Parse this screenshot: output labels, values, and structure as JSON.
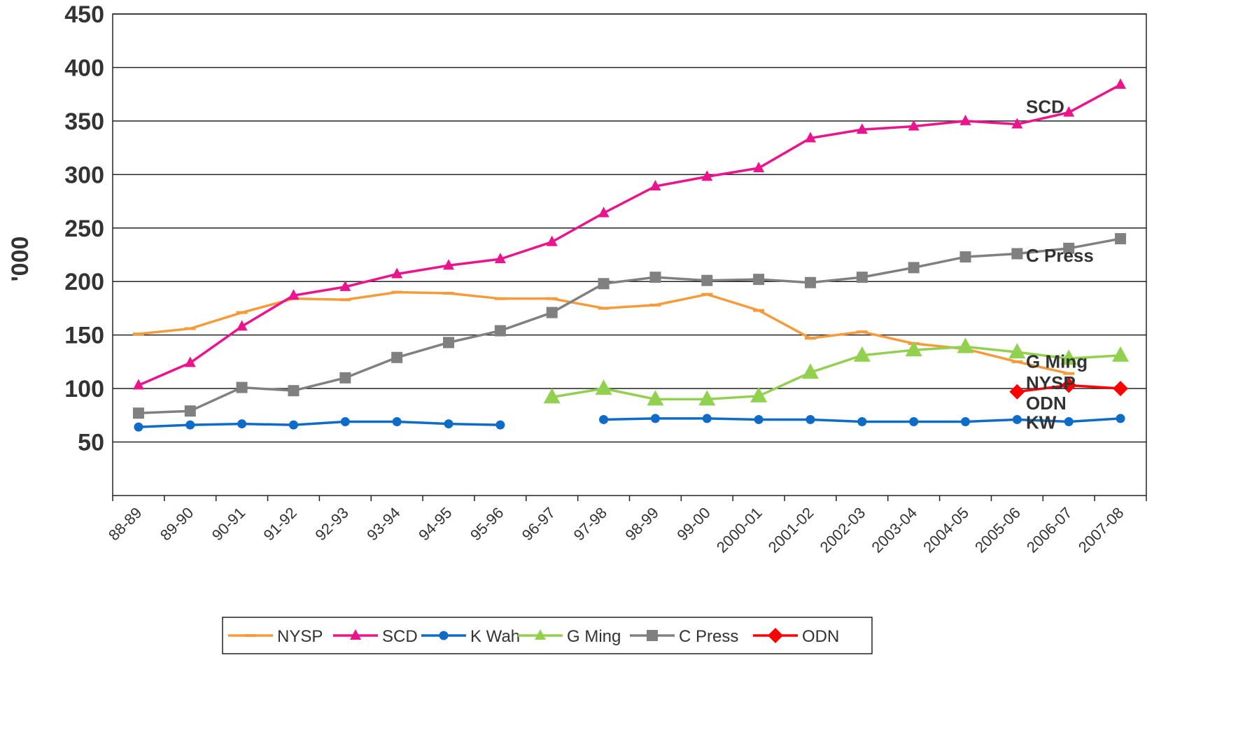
{
  "chart_data": {
    "type": "line",
    "title": "",
    "xlabel": "",
    "ylabel": "'000",
    "ylim": [
      0,
      450
    ],
    "yticks": [
      50,
      100,
      150,
      200,
      250,
      300,
      350,
      400,
      450
    ],
    "grid": true,
    "legend_position": "bottom",
    "categories": [
      "88-89",
      "89-90",
      "90-91",
      "91-92",
      "92-93",
      "93-94",
      "94-95",
      "95-96",
      "96-97",
      "97-98",
      "98-99",
      "99-00",
      "2000-01",
      "2001-02",
      "2002-03",
      "2003-04",
      "2004-05",
      "2005-06",
      "2006-07",
      "2007-08"
    ],
    "series": [
      {
        "name": "NYSP",
        "color": "#F79A3A",
        "marker": "dash",
        "values": [
          151,
          156,
          171,
          184,
          183,
          190,
          189,
          184,
          184,
          175,
          178,
          188,
          173,
          147,
          153,
          142,
          137,
          125,
          114,
          null
        ]
      },
      {
        "name": "SCD",
        "color": "#EC148C",
        "marker": "triangle",
        "values": [
          103,
          124,
          158,
          187,
          195,
          207,
          215,
          221,
          237,
          264,
          289,
          298,
          306,
          334,
          342,
          345,
          350,
          347,
          358,
          384
        ]
      },
      {
        "name": "K Wah",
        "color": "#0F6BC8",
        "marker": "circle",
        "values": [
          64,
          66,
          67,
          66,
          69,
          69,
          67,
          66,
          null,
          71,
          72,
          72,
          71,
          71,
          69,
          69,
          69,
          71,
          69,
          72
        ]
      },
      {
        "name": "G Ming",
        "color": "#92D050",
        "marker": "triangle-large",
        "values": [
          null,
          null,
          null,
          null,
          null,
          null,
          null,
          null,
          92,
          100,
          90,
          90,
          93,
          115,
          131,
          136,
          139,
          134,
          128,
          131
        ]
      },
      {
        "name": "C Press",
        "color": "#808080",
        "marker": "square",
        "values": [
          77,
          79,
          101,
          98,
          110,
          129,
          143,
          154,
          171,
          198,
          204,
          201,
          202,
          199,
          204,
          213,
          223,
          226,
          231,
          240
        ]
      },
      {
        "name": "ODN",
        "color": "#FF0000",
        "marker": "diamond",
        "values": [
          null,
          null,
          null,
          null,
          null,
          null,
          null,
          null,
          null,
          null,
          null,
          null,
          null,
          null,
          null,
          null,
          null,
          97,
          103,
          100
        ]
      }
    ],
    "end_labels": [
      {
        "text": "SCD",
        "value": 364
      },
      {
        "text": "C Press",
        "value": 225
      },
      {
        "text": "G Ming",
        "value": 126
      },
      {
        "text": "NYSP",
        "value": 106
      },
      {
        "text": "ODN",
        "value": 87
      },
      {
        "text": "KW",
        "value": 69
      }
    ]
  }
}
